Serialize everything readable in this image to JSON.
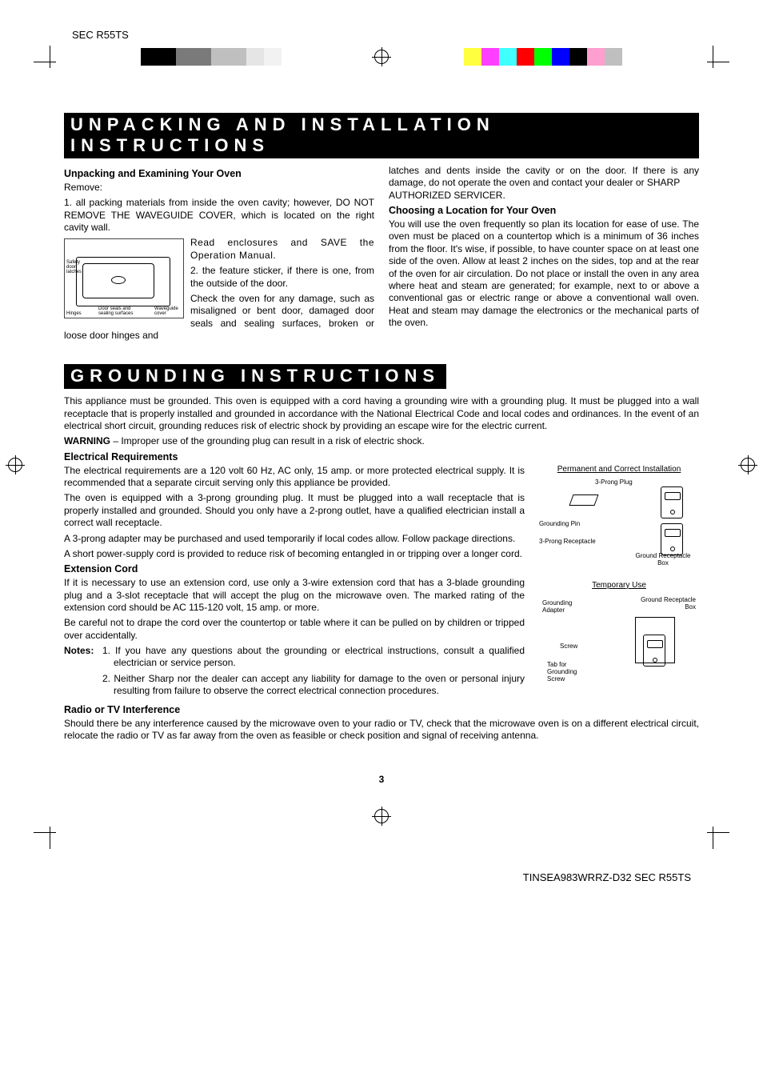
{
  "header_model": "SEC R55TS",
  "color_bar_left": [
    "#000000",
    "#000000",
    "#7a7a7a",
    "#7a7a7a",
    "#bfbfbf",
    "#bfbfbf",
    "#e5e5e5",
    "#f2f2f2",
    "#ffffff"
  ],
  "color_bar_right": [
    "#ffff3f",
    "#ff3fff",
    "#3fffff",
    "#ff0000",
    "#00ff00",
    "#0000ff",
    "#000000",
    "#ff9fd0",
    "#bfbfbf"
  ],
  "section1": {
    "title": "UNPACKING AND INSTALLATION INSTRUCTIONS",
    "h_unpack": "Unpacking and Examining Your Oven",
    "remove": "Remove:",
    "step1": "1. all packing materials from inside the oven cavity; however, DO NOT REMOVE THE WAVEGUIDE COVER, which is located on the right cavity wall.",
    "diagram": {
      "l_latches": "Safety door latches",
      "l_hinges": "Hinges",
      "l_seals": "Door seals and sealing surfaces",
      "l_wave": "Waveguide cover"
    },
    "read_save": "Read enclosures and SAVE the Operation Manual.",
    "step2": "2. the feature sticker, if there is one, from the outside of the door.",
    "check": "Check the oven for any damage, such as misaligned or bent door, damaged door seals and sealing surfaces, broken or loose door hinges and",
    "col2a": "latches and dents inside the cavity or on the door. If there is any damage, do not operate the oven and contact your dealer or SHARP",
    "col2b": "AUTHORIZED SERVICER.",
    "h_loc": "Choosing a Location for Your Oven",
    "loc_p": "You will use the oven frequently so plan its location for ease of use. The oven must be placed on a countertop which is a minimum of 36 inches from the floor. It's wise, if possible, to have counter space on at least one side of the oven. Allow at least 2 inches on the sides, top and at the rear of the oven for air circulation. Do not place or install the oven in any area where heat and steam are generated; for example, next to or above a conventional gas or electric range or above a conventional wall oven. Heat and steam may damage the electronics or the mechanical parts of the oven."
  },
  "section2": {
    "title": "GROUNDING INSTRUCTIONS",
    "intro": "This appliance must be grounded. This oven is equipped with a cord having a grounding wire with a grounding plug. It must be plugged into a wall receptacle that is properly installed and grounded in accordance with the National Electrical Code and local codes and ordinances. In the event of an electrical short circuit, grounding reduces risk of electric shock by providing an escape wire for the electric current.",
    "warning_label": "WARNING",
    "warning_text": " – Improper use of the grounding plug can result in a risk of electric shock.",
    "h_elec": "Electrical Requirements",
    "elec_p1": "The electrical requirements are a 120 volt 60 Hz, AC only, 15 amp. or more protected electrical supply. It is recommended that a separate circuit serving only this appliance be provided.",
    "elec_p2": "The oven is equipped with a 3-prong grounding plug. It must be plugged into a wall receptacle that is properly installed and grounded. Should you only have a 2-prong outlet, have a qualified electrician install a correct wall receptacle.",
    "elec_p3": "A 3-prong adapter may be purchased and used temporarily if local codes allow. Follow package directions.",
    "elec_p4": "A short power-supply cord is provided to reduce risk of becoming entangled in or tripping over a longer cord.",
    "h_ext": "Extension Cord",
    "ext_p1": "If it is necessary to use an extension cord, use only a 3-wire extension cord that has a 3-blade grounding plug and a 3-slot receptacle that will accept the plug on the microwave oven. The marked  rating of the extension cord should be AC 115-120 volt, 15 amp. or more.",
    "ext_p2": "Be careful not to drape the cord over the countertop or table where it can be pulled on by children or tripped over accidentally.",
    "notes_label": "Notes:",
    "note1": "1. If you have any questions about the grounding or electrical instructions, consult a qualified electrician or service person.",
    "note2": "2. Neither Sharp nor the dealer can accept any liability for damage to the oven or personal injury resulting from failure to observe the correct electrical connection procedures.",
    "h_radio": "Radio or TV Interference",
    "radio_p": "Should there be any interference caused by the microwave oven to your radio or TV, check that the microwave oven is on a different electrical circuit, relocate the radio or TV as far away from the oven as feasible or check position and signal of receiving antenna.",
    "fig1": {
      "title": "Permanent and Correct Installation",
      "l_plug": "3-Prong Plug",
      "l_pin": "Grounding Pin",
      "l_recept": "3-Prong Receptacle",
      "l_box": "Ground Receptacle Box"
    },
    "fig2": {
      "title": "Temporary Use",
      "l_adapter": "Grounding Adapter",
      "l_box": "Ground Receptacle Box",
      "l_screw": "Screw",
      "l_tab": "Tab for Grounding Screw"
    }
  },
  "page_number": "3",
  "footer": "TINSEA983WRRZ-D32 SEC R55TS"
}
